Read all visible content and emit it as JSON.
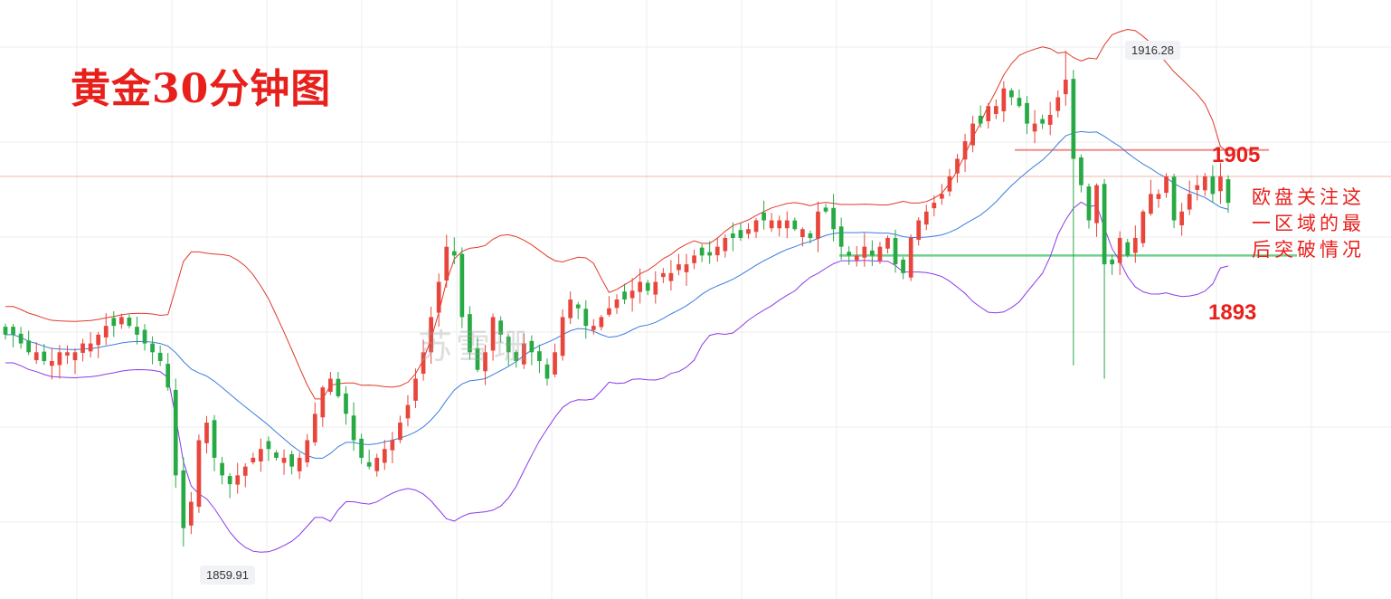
{
  "title": "黄金30分钟图",
  "watermark": "苏雪珊",
  "annotations": {
    "resistance_label": "1905",
    "support_label": "1893",
    "note": "欧盘关注这一区域的最后突破情况",
    "high_tag": "1916.28",
    "low_tag": "1859.91"
  },
  "colors": {
    "up": "#e8453c",
    "down": "#27a944",
    "bb_upper": "#e03a2a",
    "bb_middle": "#3a7de0",
    "bb_lower": "#8b3ae8",
    "resistance_line": "#f28b8b",
    "support_line": "#6fcf8e",
    "current_price_line": "#f0b8a8",
    "grid": "#ececec"
  },
  "chart_data": {
    "type": "candlestick",
    "title": "黄金30分钟图",
    "indicators": [
      "bollinger-upper",
      "bollinger-middle",
      "bollinger-lower"
    ],
    "grid": true,
    "ylim": [
      1856,
      1920
    ],
    "price_range": {
      "high": 1916.28,
      "low": 1859.91
    },
    "horizontal_levels": [
      {
        "label": "1905",
        "value": 1905,
        "color": "#f28b8b"
      },
      {
        "label": "1893",
        "value": 1893,
        "color": "#6fcf8e"
      },
      {
        "value": 1902,
        "color": "#f0b8a8"
      }
    ],
    "close_series": [
      1884,
      1884,
      1883,
      1882,
      1882,
      1881,
      1881,
      1882,
      1882,
      1882,
      1883,
      1883,
      1884,
      1885,
      1885,
      1886,
      1885,
      1884,
      1883,
      1882,
      1881,
      1878,
      1868,
      1862,
      1865,
      1872,
      1874,
      1870,
      1868,
      1867,
      1868,
      1869,
      1870,
      1871,
      1871,
      1870,
      1870,
      1869,
      1870,
      1872,
      1875,
      1878,
      1879,
      1877,
      1875,
      1872,
      1870,
      1869,
      1870,
      1871,
      1872,
      1874,
      1876,
      1879,
      1882,
      1886,
      1890,
      1894,
      1893,
      1886,
      1882,
      1880,
      1882,
      1886,
      1884,
      1882,
      1881,
      1883,
      1882,
      1881,
      1879,
      1882,
      1886,
      1888,
      1887,
      1885,
      1885,
      1886,
      1887,
      1888,
      1888,
      1889,
      1890,
      1889,
      1890,
      1891,
      1891,
      1892,
      1892,
      1893,
      1893,
      1893,
      1894,
      1895,
      1895,
      1895,
      1896,
      1897,
      1897,
      1897,
      1897,
      1897,
      1896,
      1896,
      1895,
      1898,
      1898,
      1896,
      1894,
      1893,
      1893,
      1894,
      1893,
      1894,
      1895,
      1892,
      1891,
      1895,
      1897,
      1898,
      1899,
      1900,
      1902,
      1904,
      1906,
      1908,
      1908,
      1910,
      1910,
      1912,
      1911,
      1910,
      1908,
      1908,
      1908,
      1909,
      1911,
      1913,
      1904,
      1901,
      1897,
      1901,
      1892,
      1892,
      1895,
      1893,
      1895,
      1898,
      1900,
      1900,
      1902,
      1897,
      1898,
      1900,
      1901,
      1902,
      1900,
      1902,
      1899
    ]
  }
}
